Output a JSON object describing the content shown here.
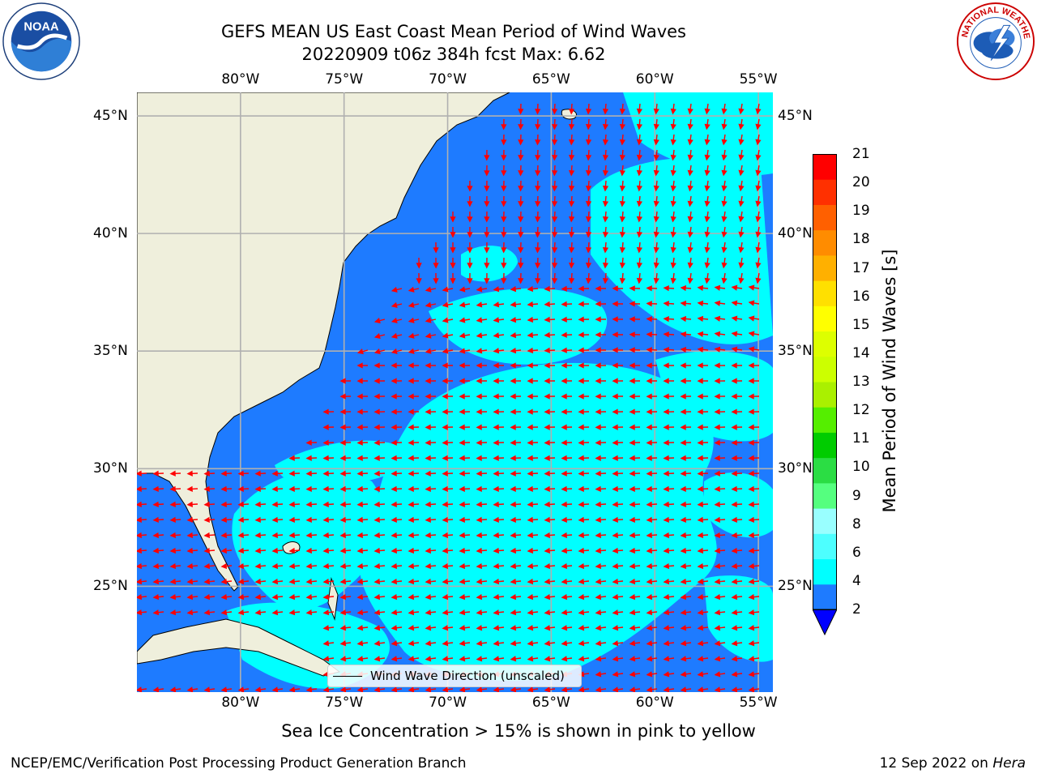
{
  "header": {
    "title_line1": "GEFS MEAN US East Coast Mean Period of Wind Waves",
    "title_line2": "20220909 t06z 384h fcst   Max: 6.62"
  },
  "logos": {
    "left": {
      "name": "noaa-logo",
      "text": "NOAA",
      "ring_text": "NATIONAL OCEANIC AND ATMOSPHERIC ADMINISTRATION · U.S. DEPARTMENT OF COMMERCE"
    },
    "right": {
      "name": "nws-logo",
      "ring_text": "NATIONAL WEATHER SERVICE"
    }
  },
  "map": {
    "lon_labels": [
      "80°W",
      "75°W",
      "70°W",
      "65°W",
      "60°W",
      "55°W"
    ],
    "lon_values": [
      -80,
      -75,
      -70,
      -65,
      -60,
      -55
    ],
    "lat_labels": [
      "45°N",
      "40°N",
      "35°N",
      "30°N",
      "25°N"
    ],
    "lat_values": [
      45,
      40,
      35,
      30,
      25
    ],
    "extent": {
      "lon": [
        -85,
        -54.3
      ],
      "lat": [
        20.5,
        46.0
      ]
    },
    "legend_label": "Wind Wave Direction (unscaled)",
    "colors": {
      "land": "#efefdc",
      "ocean_low": "#1e7bff",
      "ocean_mid": "#00ffff",
      "arrows": "#ff0000",
      "grid": "#b0b0b0"
    }
  },
  "colorbar": {
    "label": "Mean Period of Wind Waves [s]",
    "ticks": [
      "21",
      "20",
      "19",
      "18",
      "17",
      "16",
      "15",
      "14",
      "13",
      "12",
      "11",
      "10",
      "9",
      "8",
      "6",
      "4",
      "2"
    ],
    "colors_bottom_to_top": [
      "#1e7bff",
      "#00ffff",
      "#4dffff",
      "#99ffff",
      "#55ff7f",
      "#2bdd44",
      "#00cc00",
      "#55ee00",
      "#aaf000",
      "#ccff00",
      "#ddff00",
      "#ffff00",
      "#ffe000",
      "#ffb000",
      "#ff8c00",
      "#ff6000",
      "#ff3000",
      "#ff0000"
    ],
    "under_color": "#0000ff"
  },
  "notes": {
    "ice_note": "Sea Ice Concentration > 15% is shown in pink to yellow"
  },
  "footer": {
    "left": "NCEP/EMC/Verification Post Processing Product Generation Branch",
    "date": "12 Sep 2022 on",
    "machine": "Hera"
  }
}
